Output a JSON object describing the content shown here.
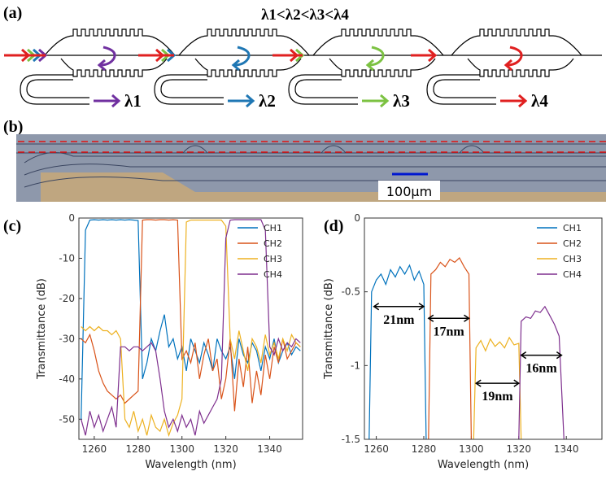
{
  "panel_labels": [
    "(a)",
    "(b)",
    "(c)",
    "(d)"
  ],
  "diagram": {
    "title": "λ1<λ2<λ3<λ4",
    "outputs": [
      "λ1",
      "λ2",
      "λ3",
      "λ4"
    ],
    "colors": [
      "#7030a0",
      "#1f77b4",
      "#7cc242",
      "#e02020"
    ]
  },
  "micrograph": {
    "scale_label": "100μm"
  },
  "chart_data": [
    {
      "type": "line",
      "xlabel": "Wavelength (nm)",
      "ylabel": "Transmittance (dB)",
      "xlim": [
        1253,
        1355
      ],
      "xticks": [
        1260,
        1280,
        1300,
        1320,
        1340
      ],
      "ylim": [
        -55,
        0
      ],
      "yticks": [
        0,
        -10,
        -20,
        -30,
        -40,
        -50
      ],
      "legend": "top-right",
      "x": [
        1254,
        1256,
        1258,
        1260,
        1262,
        1264,
        1266,
        1268,
        1270,
        1272,
        1274,
        1276,
        1278,
        1280,
        1282,
        1284,
        1286,
        1288,
        1290,
        1292,
        1294,
        1296,
        1298,
        1300,
        1302,
        1304,
        1306,
        1308,
        1310,
        1312,
        1314,
        1316,
        1318,
        1320,
        1322,
        1324,
        1326,
        1328,
        1330,
        1332,
        1334,
        1336,
        1338,
        1340,
        1342,
        1344,
        1346,
        1348,
        1350,
        1352,
        1354
      ],
      "series": [
        {
          "name": "CH1",
          "color": "#0072bd",
          "values": [
            -50,
            -3,
            -0.5,
            -0.4,
            -0.5,
            -0.4,
            -0.5,
            -0.4,
            -0.5,
            -0.4,
            -0.5,
            -0.4,
            -0.5,
            -0.6,
            -40,
            -36,
            -30,
            -33,
            -28,
            -24,
            -32,
            -30,
            -35,
            -32,
            -38,
            -30,
            -33,
            -36,
            -31,
            -34,
            -38,
            -30,
            -33,
            -35,
            -32,
            -40,
            -30,
            -34,
            -36,
            -31,
            -33,
            -38,
            -32,
            -35,
            -30,
            -36,
            -33,
            -31,
            -34,
            -32,
            -33
          ]
        },
        {
          "name": "CH2",
          "color": "#d95319",
          "values": [
            -30,
            -31,
            -29,
            -33,
            -38,
            -41,
            -43,
            -44,
            -45,
            -44,
            -46,
            -45,
            -44,
            -43,
            -0.5,
            -0.4,
            -0.4,
            -0.5,
            -0.4,
            -0.4,
            -0.5,
            -0.4,
            -0.5,
            -35,
            -33,
            -36,
            -31,
            -40,
            -34,
            -30,
            -38,
            -35,
            -45,
            -40,
            -30,
            -48,
            -35,
            -42,
            -32,
            -46,
            -38,
            -44,
            -34,
            -40,
            -32,
            -36,
            -30,
            -35,
            -33,
            -31,
            -32
          ]
        },
        {
          "name": "CH3",
          "color": "#edb120",
          "values": [
            -27,
            -28,
            -27,
            -28,
            -27,
            -28,
            -28,
            -29,
            -28,
            -30,
            -50,
            -52,
            -48,
            -53,
            -50,
            -54,
            -49,
            -52,
            -53,
            -50,
            -54,
            -51,
            -49,
            -45,
            -1,
            -0.5,
            -0.5,
            -0.5,
            -0.5,
            -0.5,
            -0.5,
            -0.5,
            -0.5,
            -2,
            -30,
            -35,
            -28,
            -33,
            -38,
            -30,
            -32,
            -36,
            -29,
            -34,
            -31,
            -35,
            -30,
            -33,
            -29,
            -31,
            -32
          ]
        },
        {
          "name": "CH4",
          "color": "#7e2f8e",
          "values": [
            -50,
            -54,
            -48,
            -52,
            -49,
            -53,
            -50,
            -47,
            -52,
            -32,
            -32,
            -33,
            -32,
            -32,
            -33,
            -32,
            -31,
            -33,
            -40,
            -48,
            -52,
            -50,
            -53,
            -49,
            -52,
            -50,
            -54,
            -48,
            -51,
            -49,
            -47,
            -45,
            -40,
            -5,
            -0.5,
            -0.4,
            -0.4,
            -0.4,
            -0.4,
            -0.4,
            -0.4,
            -0.4,
            -3,
            -32,
            -34,
            -30,
            -33,
            -31,
            -32,
            -30,
            -31
          ]
        }
      ]
    },
    {
      "type": "line",
      "xlabel": "Wavelength (nm)",
      "ylabel": "Transmittance (dB)",
      "xlim": [
        1255,
        1355
      ],
      "xticks": [
        1260,
        1280,
        1300,
        1320,
        1340
      ],
      "ylim": [
        -1.5,
        0
      ],
      "yticks": [
        0,
        -0.5,
        -1,
        -1.5
      ],
      "legend": "top-right",
      "series": [
        {
          "name": "CH1",
          "color": "#0072bd",
          "x": [
            1257,
            1258,
            1260,
            1262,
            1264,
            1266,
            1268,
            1270,
            1272,
            1274,
            1276,
            1278,
            1280,
            1281
          ],
          "values": [
            -1.5,
            -0.5,
            -0.42,
            -0.38,
            -0.45,
            -0.35,
            -0.4,
            -0.33,
            -0.38,
            -0.32,
            -0.42,
            -0.36,
            -0.45,
            -1.5
          ]
        },
        {
          "name": "CH2",
          "color": "#d95319",
          "x": [
            1282,
            1283,
            1285,
            1287,
            1289,
            1291,
            1293,
            1295,
            1297,
            1299,
            1300
          ],
          "values": [
            -1.5,
            -0.38,
            -0.35,
            -0.3,
            -0.33,
            -0.28,
            -0.3,
            -0.27,
            -0.33,
            -0.38,
            -1.5
          ]
        },
        {
          "name": "CH3",
          "color": "#edb120",
          "x": [
            1301,
            1302,
            1304,
            1306,
            1308,
            1310,
            1312,
            1314,
            1316,
            1318,
            1320,
            1321
          ],
          "values": [
            -1.5,
            -0.88,
            -0.83,
            -0.9,
            -0.82,
            -0.87,
            -0.84,
            -0.88,
            -0.81,
            -0.86,
            -0.85,
            -1.5
          ]
        },
        {
          "name": "CH4",
          "color": "#7e2f8e",
          "x": [
            1320,
            1321,
            1323,
            1325,
            1327,
            1329,
            1331,
            1333,
            1335,
            1337,
            1339
          ],
          "values": [
            -1.5,
            -0.7,
            -0.67,
            -0.68,
            -0.63,
            -0.64,
            -0.6,
            -0.66,
            -0.72,
            -0.8,
            -1.5
          ]
        }
      ],
      "annotations": [
        {
          "text": "21nm",
          "x_from": 1259,
          "x_to": 1280,
          "y": -0.6
        },
        {
          "text": "17nm",
          "x_from": 1282,
          "x_to": 1299,
          "y": -0.68
        },
        {
          "text": "19nm",
          "x_from": 1302,
          "x_to": 1320,
          "y": -1.12
        },
        {
          "text": "16nm",
          "x_from": 1321,
          "x_to": 1338,
          "y": -0.93
        }
      ]
    }
  ]
}
